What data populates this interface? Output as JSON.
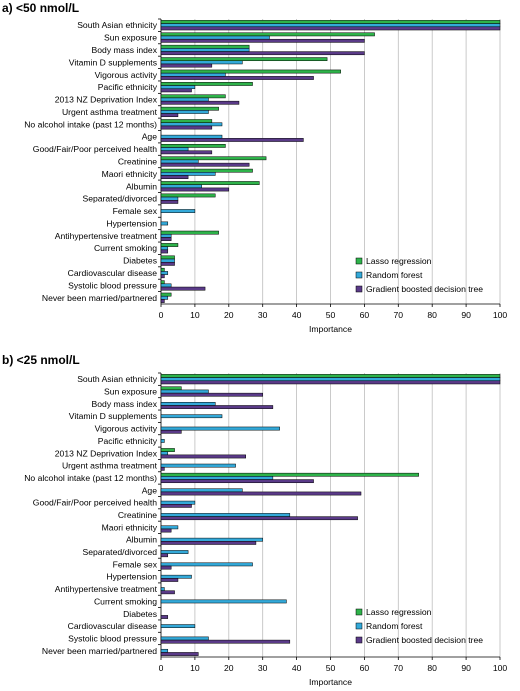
{
  "colors": {
    "lasso": "#2eb34a",
    "rf": "#33a9d9",
    "gb": "#5a3a88"
  },
  "chart_data": [
    {
      "type": "bar",
      "orientation": "horizontal",
      "title": "a) <50 nmol/L",
      "xlabel": "Importance",
      "xlim": [
        0,
        100
      ],
      "xticks": [
        0,
        10,
        20,
        30,
        40,
        50,
        60,
        70,
        80,
        90,
        100
      ],
      "grid": true,
      "legend_position": "bottom-right",
      "categories": [
        "South Asian ethnicity",
        "Sun exposure",
        "Body mass index",
        "Vitamin D supplements",
        "Vigorous activity",
        "Pacific ethnicity",
        "2013 NZ Deprivation Index",
        "Urgent asthma treatment",
        "No alcohol intake (past 12 months)",
        "Age",
        "Good/Fair/Poor perceived health",
        "Creatinine",
        "Maori ethnicity",
        "Albumin",
        "Separated/divorced",
        "Female sex",
        "Hypertension",
        "Antihypertensive treatment",
        "Current smoking",
        "Diabetes",
        "Cardiovascular disease",
        "Systolic blood pressure",
        "Never been married/partnered"
      ],
      "series": [
        {
          "name": "Lasso regression",
          "values": [
            100,
            63,
            26,
            49,
            53,
            27,
            19,
            17,
            15,
            0,
            19,
            31,
            27,
            29,
            16,
            0,
            0,
            17,
            5,
            4,
            1,
            1,
            3
          ]
        },
        {
          "name": "Random forest",
          "values": [
            100,
            32,
            26,
            24,
            19,
            10,
            14,
            14,
            18,
            18,
            8,
            11,
            16,
            12,
            5,
            10,
            2,
            3,
            2,
            4,
            2,
            3,
            2
          ]
        },
        {
          "name": "Gradient boosted decision tree",
          "values": [
            100,
            60,
            60,
            15,
            45,
            9,
            23,
            5,
            15,
            42,
            15,
            26,
            8,
            20,
            5,
            0,
            0,
            3,
            2,
            4,
            1,
            13,
            1
          ]
        }
      ]
    },
    {
      "type": "bar",
      "orientation": "horizontal",
      "title": "b) <25 nmol/L",
      "xlabel": "Importance",
      "xlim": [
        0,
        100
      ],
      "xticks": [
        0,
        10,
        20,
        30,
        40,
        50,
        60,
        70,
        80,
        90,
        100
      ],
      "grid": true,
      "legend_position": "bottom-right",
      "categories": [
        "South Asian ethnicity",
        "Sun exposure",
        "Body mass index",
        "Vitamin D supplements",
        "Vigorous activity",
        "Pacific ethnicity",
        "2013 NZ Deprivation Index",
        "Urgent asthma treatment",
        "No alcohol intake (past 12 months)",
        "Age",
        "Good/Fair/Poor perceived health",
        "Creatinine",
        "Maori ethnicity",
        "Albumin",
        "Separated/divorced",
        "Female sex",
        "Hypertension",
        "Antihypertensive treatment",
        "Current smoking",
        "Diabetes",
        "Cardiovascular disease",
        "Systolic blood pressure",
        "Never been married/partnered"
      ],
      "series": [
        {
          "name": "Lasso regression",
          "values": [
            100,
            6,
            0,
            0,
            0,
            0,
            4,
            0,
            76,
            0,
            0,
            0,
            0,
            0,
            0,
            0,
            0,
            0,
            0,
            0,
            0,
            0,
            0
          ]
        },
        {
          "name": "Random forest",
          "values": [
            100,
            14,
            16,
            18,
            35,
            1,
            2,
            22,
            33,
            24,
            10,
            38,
            5,
            30,
            8,
            27,
            9,
            1,
            37,
            0,
            10,
            14,
            2
          ]
        },
        {
          "name": "Gradient boosted decision tree",
          "values": [
            100,
            30,
            33,
            0,
            6,
            0,
            25,
            1,
            45,
            59,
            9,
            58,
            3,
            28,
            2,
            3,
            5,
            4,
            0,
            2,
            0,
            38,
            11
          ]
        }
      ]
    }
  ]
}
